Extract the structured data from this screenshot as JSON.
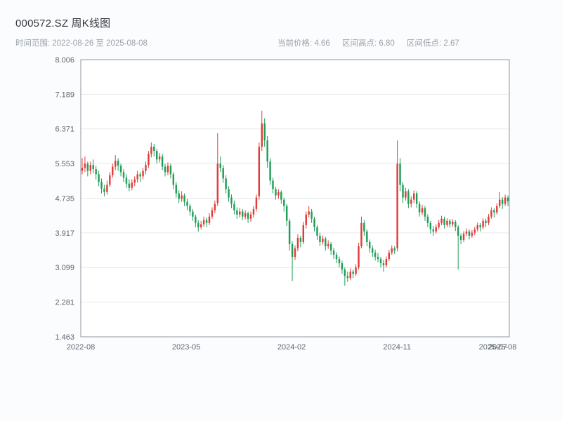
{
  "header": {
    "title": "000572.SZ 周K线图",
    "range_label": "时间范围: 2022-08-26 至 2025-08-08",
    "stats": [
      "当前价格: 4.66",
      "区间高点: 6.80",
      "区间低点: 2.67"
    ]
  },
  "chart_data": {
    "type": "candlestick",
    "symbol": "000572.SZ",
    "interval": "weekly",
    "date_range": {
      "start": "2022-08-26",
      "end": "2025-08-08"
    },
    "current_price": 4.66,
    "range_high": 6.8,
    "range_low": 2.67,
    "ylim": [
      1.463,
      8.006
    ],
    "y_ticks": [
      8.006,
      7.189,
      6.371,
      5.553,
      4.735,
      3.917,
      3.099,
      2.281,
      1.463
    ],
    "x_ticks": [
      {
        "label": "2022-08",
        "pos": 0.0
      },
      {
        "label": "2023-05",
        "pos": 0.246
      },
      {
        "label": "2024-02",
        "pos": 0.492
      },
      {
        "label": "2024-11",
        "pos": 0.738
      },
      {
        "label": "2025-08",
        "pos": 0.984
      }
    ],
    "x_tick_overlap": {
      "label": "2025-07",
      "pos": 0.962
    },
    "colors": {
      "up": "#e13c39",
      "down": "#1f9e58",
      "grid": "#e7e9ec",
      "frame": "#8f969e",
      "tick_text": "#5f6672"
    },
    "candles": [
      [
        5.38,
        5.68,
        5.3,
        5.45
      ],
      [
        5.45,
        5.72,
        5.35,
        5.55
      ],
      [
        5.55,
        5.6,
        5.25,
        5.38
      ],
      [
        5.38,
        5.6,
        5.3,
        5.52
      ],
      [
        5.52,
        5.65,
        5.32,
        5.42
      ],
      [
        5.42,
        5.5,
        5.18,
        5.3
      ],
      [
        5.3,
        5.38,
        5.02,
        5.12
      ],
      [
        5.12,
        5.2,
        4.85,
        4.96
      ],
      [
        4.96,
        5.05,
        4.78,
        4.88
      ],
      [
        4.88,
        5.15,
        4.82,
        5.05
      ],
      [
        5.05,
        5.35,
        5.0,
        5.28
      ],
      [
        5.28,
        5.55,
        5.22,
        5.48
      ],
      [
        5.48,
        5.75,
        5.4,
        5.62
      ],
      [
        5.62,
        5.68,
        5.38,
        5.5
      ],
      [
        5.5,
        5.55,
        5.25,
        5.35
      ],
      [
        5.35,
        5.42,
        5.12,
        5.22
      ],
      [
        5.22,
        5.3,
        4.98,
        5.08
      ],
      [
        5.08,
        5.18,
        4.9,
        4.98
      ],
      [
        4.98,
        5.18,
        4.92,
        5.1
      ],
      [
        5.1,
        5.25,
        5.02,
        5.18
      ],
      [
        5.18,
        5.38,
        5.1,
        5.3
      ],
      [
        5.3,
        5.35,
        5.12,
        5.25
      ],
      [
        5.25,
        5.45,
        5.18,
        5.38
      ],
      [
        5.38,
        5.6,
        5.3,
        5.52
      ],
      [
        5.52,
        5.85,
        5.45,
        5.78
      ],
      [
        5.78,
        6.05,
        5.7,
        5.95
      ],
      [
        5.95,
        6.02,
        5.72,
        5.85
      ],
      [
        5.85,
        5.9,
        5.55,
        5.65
      ],
      [
        5.65,
        5.8,
        5.58,
        5.72
      ],
      [
        5.72,
        5.78,
        5.4,
        5.48
      ],
      [
        5.48,
        5.55,
        5.25,
        5.35
      ],
      [
        5.35,
        5.58,
        5.28,
        5.5
      ],
      [
        5.5,
        5.55,
        5.2,
        5.3
      ],
      [
        5.3,
        5.35,
        4.95,
        5.05
      ],
      [
        5.05,
        5.12,
        4.75,
        4.85
      ],
      [
        4.85,
        4.92,
        4.62,
        4.72
      ],
      [
        4.72,
        4.9,
        4.65,
        4.8
      ],
      [
        4.8,
        4.85,
        4.55,
        4.65
      ],
      [
        4.65,
        4.72,
        4.45,
        4.55
      ],
      [
        4.55,
        4.6,
        4.32,
        4.42
      ],
      [
        4.42,
        4.48,
        4.2,
        4.3
      ],
      [
        4.3,
        4.35,
        4.05,
        4.15
      ],
      [
        4.15,
        4.22,
        3.95,
        4.05
      ],
      [
        4.05,
        4.2,
        4.0,
        4.12
      ],
      [
        4.12,
        4.3,
        4.06,
        4.22
      ],
      [
        4.22,
        4.28,
        4.05,
        4.15
      ],
      [
        4.15,
        4.38,
        4.1,
        4.3
      ],
      [
        4.3,
        4.52,
        4.25,
        4.45
      ],
      [
        4.45,
        4.68,
        4.38,
        4.6
      ],
      [
        4.62,
        6.27,
        4.55,
        5.55
      ],
      [
        5.55,
        5.72,
        5.35,
        5.45
      ],
      [
        5.45,
        5.52,
        5.1,
        5.2
      ],
      [
        5.2,
        5.28,
        4.85,
        4.95
      ],
      [
        4.95,
        5.02,
        4.65,
        4.75
      ],
      [
        4.75,
        4.82,
        4.5,
        4.6
      ],
      [
        4.6,
        4.68,
        4.35,
        4.45
      ],
      [
        4.45,
        4.52,
        4.25,
        4.35
      ],
      [
        4.35,
        4.5,
        4.28,
        4.42
      ],
      [
        4.42,
        4.48,
        4.22,
        4.3
      ],
      [
        4.3,
        4.45,
        4.24,
        4.38
      ],
      [
        4.38,
        4.42,
        4.15,
        4.25
      ],
      [
        4.25,
        4.42,
        4.18,
        4.35
      ],
      [
        4.35,
        4.55,
        4.28,
        4.48
      ],
      [
        4.48,
        4.82,
        4.42,
        4.75
      ],
      [
        4.78,
        6.05,
        4.7,
        5.95
      ],
      [
        5.95,
        6.8,
        5.85,
        6.5
      ],
      [
        6.5,
        6.62,
        5.95,
        6.1
      ],
      [
        6.1,
        6.2,
        5.45,
        5.6
      ],
      [
        5.6,
        5.68,
        5.05,
        5.15
      ],
      [
        5.15,
        5.22,
        4.85,
        4.95
      ],
      [
        4.95,
        5.0,
        4.7,
        4.8
      ],
      [
        4.8,
        4.95,
        4.72,
        4.88
      ],
      [
        4.88,
        4.92,
        4.6,
        4.7
      ],
      [
        4.7,
        4.75,
        4.42,
        4.55
      ],
      [
        4.55,
        4.6,
        4.08,
        4.2
      ],
      [
        4.2,
        4.25,
        3.5,
        3.65
      ],
      [
        3.65,
        3.72,
        2.78,
        3.35
      ],
      [
        3.35,
        3.62,
        3.28,
        3.55
      ],
      [
        3.55,
        3.88,
        3.48,
        3.8
      ],
      [
        3.8,
        3.85,
        3.58,
        3.7
      ],
      [
        3.7,
        4.18,
        3.65,
        4.1
      ],
      [
        4.1,
        4.42,
        4.02,
        4.35
      ],
      [
        4.35,
        4.55,
        4.28,
        4.42
      ],
      [
        4.42,
        4.48,
        4.15,
        4.25
      ],
      [
        4.25,
        4.3,
        3.95,
        4.05
      ],
      [
        4.05,
        4.1,
        3.75,
        3.85
      ],
      [
        3.85,
        3.92,
        3.6,
        3.7
      ],
      [
        3.7,
        3.85,
        3.64,
        3.78
      ],
      [
        3.78,
        3.82,
        3.5,
        3.6
      ],
      [
        3.6,
        3.74,
        3.54,
        3.65
      ],
      [
        3.65,
        3.7,
        3.4,
        3.5
      ],
      [
        3.5,
        3.56,
        3.3,
        3.4
      ],
      [
        3.4,
        3.46,
        3.2,
        3.3
      ],
      [
        3.3,
        3.36,
        3.1,
        3.2
      ],
      [
        3.2,
        3.26,
        2.95,
        3.05
      ],
      [
        3.05,
        3.1,
        2.67,
        2.9
      ],
      [
        2.9,
        3.0,
        2.76,
        2.85
      ],
      [
        2.85,
        3.08,
        2.8,
        3.0
      ],
      [
        3.0,
        3.05,
        2.85,
        2.95
      ],
      [
        2.95,
        3.18,
        2.9,
        3.1
      ],
      [
        3.1,
        3.68,
        3.05,
        3.6
      ],
      [
        3.6,
        4.3,
        3.55,
        4.15
      ],
      [
        4.15,
        4.22,
        3.85,
        3.95
      ],
      [
        3.95,
        4.0,
        3.6,
        3.7
      ],
      [
        3.7,
        3.76,
        3.45,
        3.55
      ],
      [
        3.55,
        3.62,
        3.35,
        3.45
      ],
      [
        3.45,
        3.52,
        3.26,
        3.35
      ],
      [
        3.35,
        3.44,
        3.22,
        3.3
      ],
      [
        3.3,
        3.35,
        3.1,
        3.2
      ],
      [
        3.2,
        3.28,
        3.0,
        3.15
      ],
      [
        3.15,
        3.36,
        3.1,
        3.3
      ],
      [
        3.3,
        3.52,
        3.25,
        3.45
      ],
      [
        3.45,
        3.62,
        3.4,
        3.55
      ],
      [
        3.55,
        3.6,
        3.42,
        3.5
      ],
      [
        3.55,
        6.1,
        3.48,
        5.55
      ],
      [
        5.55,
        5.68,
        4.9,
        5.05
      ],
      [
        5.05,
        5.12,
        4.62,
        4.75
      ],
      [
        4.75,
        4.98,
        4.68,
        4.9
      ],
      [
        4.9,
        4.95,
        4.5,
        4.6
      ],
      [
        4.6,
        4.78,
        4.52,
        4.7
      ],
      [
        4.7,
        4.92,
        4.62,
        4.85
      ],
      [
        4.85,
        4.9,
        4.5,
        4.6
      ],
      [
        4.6,
        4.66,
        4.3,
        4.4
      ],
      [
        4.4,
        4.58,
        4.34,
        4.5
      ],
      [
        4.5,
        4.55,
        4.2,
        4.3
      ],
      [
        4.3,
        4.36,
        4.05,
        4.15
      ],
      [
        4.15,
        4.2,
        3.9,
        4.0
      ],
      [
        4.0,
        4.08,
        3.85,
        3.95
      ],
      [
        3.95,
        4.12,
        3.9,
        4.05
      ],
      [
        4.05,
        4.22,
        4.0,
        4.15
      ],
      [
        4.15,
        4.32,
        4.1,
        4.25
      ],
      [
        4.25,
        4.3,
        4.02,
        4.1
      ],
      [
        4.1,
        4.26,
        4.05,
        4.2
      ],
      [
        4.2,
        4.25,
        4.04,
        4.12
      ],
      [
        4.12,
        4.24,
        4.06,
        4.18
      ],
      [
        4.18,
        4.22,
        3.96,
        4.05
      ],
      [
        4.05,
        4.1,
        3.05,
        3.85
      ],
      [
        3.85,
        3.9,
        3.65,
        3.75
      ],
      [
        3.75,
        3.96,
        3.7,
        3.9
      ],
      [
        3.9,
        4.02,
        3.84,
        3.95
      ],
      [
        3.95,
        4.0,
        3.76,
        3.85
      ],
      [
        3.85,
        3.98,
        3.8,
        3.92
      ],
      [
        3.92,
        4.06,
        3.86,
        4.0
      ],
      [
        4.0,
        4.16,
        3.95,
        4.1
      ],
      [
        4.1,
        4.15,
        3.95,
        4.05
      ],
      [
        4.05,
        4.26,
        4.0,
        4.2
      ],
      [
        4.2,
        4.25,
        4.05,
        4.15
      ],
      [
        4.15,
        4.36,
        4.1,
        4.3
      ],
      [
        4.3,
        4.52,
        4.25,
        4.45
      ],
      [
        4.45,
        4.5,
        4.28,
        4.4
      ],
      [
        4.4,
        4.62,
        4.35,
        4.55
      ],
      [
        4.55,
        4.88,
        4.5,
        4.7
      ],
      [
        4.7,
        4.76,
        4.48,
        4.6
      ],
      [
        4.6,
        4.82,
        4.55,
        4.75
      ],
      [
        4.75,
        4.8,
        4.55,
        4.66
      ]
    ]
  }
}
